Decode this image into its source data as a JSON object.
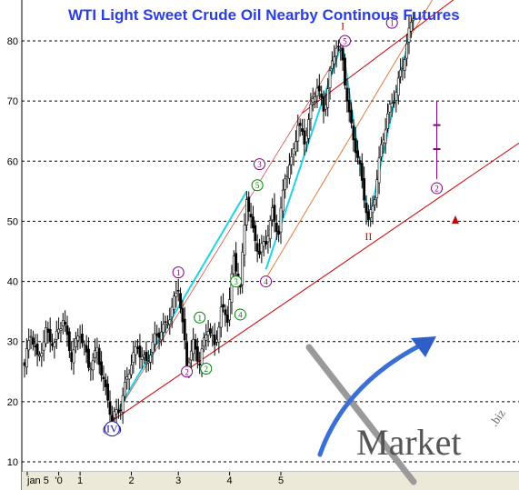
{
  "chart_data": {
    "type": "candlestick",
    "title": "WTI Light Sweet Crude Oil Nearby Continous Futures",
    "ylim": [
      8,
      86
    ],
    "y_ticks": [
      10,
      20,
      30,
      40,
      50,
      60,
      70,
      80
    ],
    "x_tick_labels": [
      "jan 5",
      "'0",
      "1",
      "2",
      "3",
      "4",
      "5"
    ],
    "grid": "horizontal dashed",
    "price_path": [
      [
        0,
        26
      ],
      [
        3,
        31
      ],
      [
        6,
        27
      ],
      [
        10,
        32
      ],
      [
        14,
        29
      ],
      [
        18,
        34
      ],
      [
        22,
        28
      ],
      [
        26,
        31
      ],
      [
        30,
        26
      ],
      [
        34,
        29
      ],
      [
        38,
        21
      ],
      [
        41,
        17
      ],
      [
        45,
        20
      ],
      [
        49,
        25
      ],
      [
        53,
        29
      ],
      [
        57,
        27
      ],
      [
        61,
        30
      ],
      [
        65,
        32
      ],
      [
        69,
        36
      ],
      [
        72,
        39
      ],
      [
        74,
        32
      ],
      [
        76,
        26
      ],
      [
        79,
        30
      ],
      [
        82,
        27
      ],
      [
        86,
        32
      ],
      [
        89,
        29
      ],
      [
        92,
        36
      ],
      [
        95,
        34
      ],
      [
        98,
        43
      ],
      [
        101,
        39
      ],
      [
        104,
        55
      ],
      [
        107,
        48
      ],
      [
        110,
        44
      ],
      [
        113,
        47
      ],
      [
        116,
        52
      ],
      [
        119,
        48
      ],
      [
        122,
        57
      ],
      [
        125,
        60
      ],
      [
        128,
        67
      ],
      [
        131,
        63
      ],
      [
        134,
        68
      ],
      [
        137,
        73
      ],
      [
        140,
        69
      ],
      [
        143,
        74
      ],
      [
        146,
        79
      ],
      [
        149,
        77
      ],
      [
        152,
        68
      ],
      [
        155,
        62
      ],
      [
        158,
        56
      ],
      [
        161,
        50
      ],
      [
        164,
        55
      ],
      [
        167,
        62
      ],
      [
        170,
        67
      ],
      [
        173,
        71
      ],
      [
        176,
        75
      ],
      [
        179,
        79
      ],
      [
        182,
        84
      ]
    ],
    "wave_labels": [
      {
        "text": "1",
        "x": 72,
        "y": 41.5,
        "color": "#800080"
      },
      {
        "text": "2",
        "x": 76,
        "y": 25,
        "color": "#800080"
      },
      {
        "text": "1",
        "x": 82,
        "y": 34,
        "color": "#008000"
      },
      {
        "text": "2",
        "x": 85,
        "y": 25.5,
        "color": "#008000"
      },
      {
        "text": "3",
        "x": 99,
        "y": 40,
        "color": "#008000"
      },
      {
        "text": "4",
        "x": 101,
        "y": 34.5,
        "color": "#008000"
      },
      {
        "text": "5",
        "x": 109,
        "y": 56,
        "color": "#008000"
      },
      {
        "text": "3",
        "x": 110,
        "y": 59.5,
        "color": "#800080"
      },
      {
        "text": "4",
        "x": 113,
        "y": 40,
        "color": "#800080"
      },
      {
        "text": "5",
        "x": 150,
        "y": 80,
        "color": "#800080"
      },
      {
        "text": "1",
        "x": 172,
        "y": 83,
        "color": "#800080"
      },
      {
        "text": "2",
        "x": 193,
        "y": 55.5,
        "color": "#800080"
      }
    ],
    "roman_labels": [
      {
        "text": "(IV)",
        "x": 41,
        "y": 15.5,
        "color": "#1a1aa0"
      },
      {
        "text": "I",
        "x": 149,
        "y": 82.5,
        "color": "#cc0000"
      },
      {
        "text": "II",
        "x": 161,
        "y": 47.5,
        "color": "#cc0000"
      }
    ],
    "logo": {
      "word": "Market",
      "suffix": ".biz"
    }
  }
}
